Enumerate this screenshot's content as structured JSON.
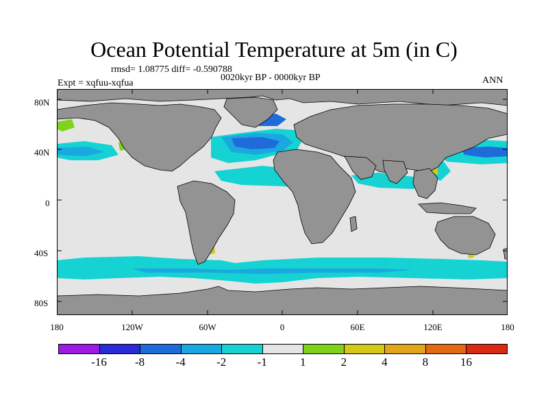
{
  "header": {
    "title": "Ocean Potential Temperature at 5m (in C)",
    "stats": "rmsd= 1.08775 diff= -0.590788",
    "period": "0020kyr BP - 0000kyr BP",
    "experiment": "Expt = xqfuu-xqfua",
    "season": "ANN"
  },
  "axes": {
    "lat_labels": [
      "80N",
      "40N",
      "0",
      "40S",
      "80S"
    ],
    "lon_labels": [
      "180",
      "120W",
      "60W",
      "0",
      "60E",
      "120E",
      "180"
    ]
  },
  "legend": {
    "labels": [
      "-16",
      "-8",
      "-4",
      "-2",
      "-1",
      "1",
      "2",
      "4",
      "8",
      "16"
    ],
    "colors": [
      "#9b1be2",
      "#2b2bd8",
      "#1f6bd9",
      "#1aa8e0",
      "#15d3d3",
      "#e5e5e5",
      "#80d31a",
      "#d3c817",
      "#e3a51c",
      "#e36a14",
      "#d92a14"
    ]
  },
  "map_colors": {
    "land": "#939393",
    "no_change": "#e5e5e5",
    "cool_1_2": "#15d3d3",
    "cool_2_4": "#1aa8e0",
    "cool_4_8": "#1f6bd9",
    "warm_1_2": "#80d31a",
    "warm_2_4": "#d3c817"
  }
}
